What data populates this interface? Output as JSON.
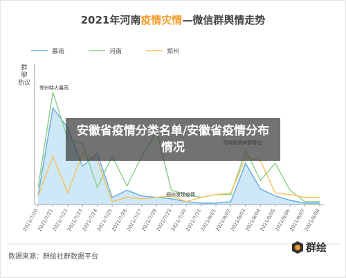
{
  "chart_data": {
    "type": "line",
    "title_parts": [
      "2021年河南",
      "疫情灾情",
      "—微信群舆情走势"
    ],
    "y_label": "群聊热议",
    "categories": [
      "2021/7/20",
      "2021/7/21",
      "2021/7/22",
      "2021/7/23",
      "2021/7/24",
      "2021/7/25",
      "2021/7/26",
      "2021/7/27",
      "2021/7/28",
      "2021/7/29",
      "2021/7/30",
      "2021/7/31",
      "2021/8/01",
      "2021/8/02",
      "2021/8/03",
      "2021/8/04",
      "2021/8/05",
      "2021/8/06",
      "2021/8/07",
      "2021/8/08"
    ],
    "series": [
      {
        "name": "暴雨",
        "color": "#6aaee0",
        "fill": true,
        "values": [
          6,
          68,
          54,
          27,
          36,
          5,
          10,
          6,
          5,
          4,
          2,
          1,
          1,
          2,
          29,
          11,
          6,
          3,
          1,
          1
        ]
      },
      {
        "name": "河南",
        "color": "#8ccf8a",
        "values": [
          12,
          79,
          46,
          43,
          12,
          34,
          13,
          34,
          51,
          10,
          7,
          5,
          7,
          7,
          38,
          17,
          29,
          10,
          2,
          2
        ]
      },
      {
        "name": "郑州",
        "color": "#f3c35f",
        "values": [
          6,
          34,
          8,
          36,
          31,
          2,
          5,
          4,
          5,
          6,
          2,
          5,
          7,
          8,
          33,
          31,
          8,
          7,
          5,
          5
        ]
      }
    ],
    "ylim": [
      0,
      100
    ],
    "annotations": [
      "郑州特大暴雨",
      "河南疫情病例增加",
      "郑州发现疫情"
    ],
    "overlay_title": "安徽省疫情分类名单/安徽省疫情分布情况",
    "source": "数据来源：群绘社群数据平台",
    "brand": "群绘"
  }
}
